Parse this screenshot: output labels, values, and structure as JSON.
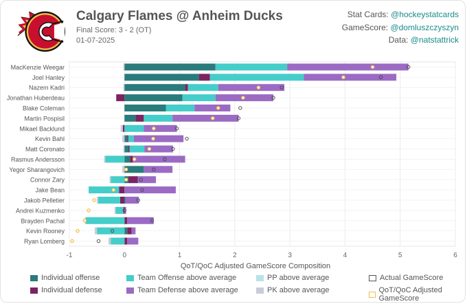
{
  "header": {
    "title": "Calgary Flames @ Anheim Ducks",
    "final_score": "Final Score: 3 - 2 (OT)",
    "date": "01-07-2025",
    "credits": [
      {
        "label": "Stat Cards:",
        "handle": "@hockeystatcards"
      },
      {
        "label": "GameScore:",
        "handle": "@domluszczyszyn"
      },
      {
        "label": "Data:",
        "handle": "@natstattrick"
      }
    ]
  },
  "logo": {
    "name": "Calgary Flames",
    "colors": {
      "red": "#c8102e",
      "gold": "#f1be48",
      "black": "#111111"
    }
  },
  "chart_data": {
    "type": "bar",
    "orientation": "horizontal",
    "stacked": true,
    "xlabel": "QoT/QoC Adjusted GameScore Composition",
    "xlim": [
      -1,
      6
    ],
    "xticks": [
      -1,
      0,
      1,
      2,
      3,
      4,
      5,
      6
    ],
    "grid": true,
    "categories": [
      "MacKenzie Weegar",
      "Joel Hanley",
      "Nazem Kadri",
      "Jonathan Huberdeau",
      "Blake Coleman",
      "Martin Pospisil",
      "Mikael Backlund",
      "Kevin Bahl",
      "Matt Coronato",
      "Rasmus Andersson",
      "Yegor Sharangovich",
      "Connor Zary",
      "Jake Bean",
      "Jakob Pelletier",
      "Andrei Kuzmenko",
      "Brayden Pachal",
      "Kevin Rooney",
      "Ryan Lomberg"
    ],
    "series": [
      {
        "name": "Individual offense",
        "color": "#2a7b7b",
        "values": [
          1.65,
          1.35,
          1.1,
          1.05,
          0.75,
          0.2,
          0.0,
          0.05,
          0.07,
          0.1,
          0.35,
          0.07,
          0.0,
          0.02,
          0.0,
          0.0,
          0.05,
          0.0
        ]
      },
      {
        "name": "Individual defense",
        "color": "#7b2460",
        "values": [
          0.0,
          0.2,
          0.05,
          -0.15,
          0.0,
          0.15,
          -0.03,
          0.02,
          0.02,
          0.05,
          0.0,
          0.17,
          -0.1,
          -0.08,
          -0.02,
          0.05,
          0.08,
          0.05
        ]
      },
      {
        "name": "Team Offense above average",
        "color": "#45cdc9",
        "values": [
          1.3,
          1.7,
          0.55,
          0.6,
          0.52,
          0.52,
          0.35,
          0.1,
          0.27,
          -0.35,
          0.0,
          -0.25,
          -0.55,
          -0.4,
          -0.14,
          -0.7,
          -0.5,
          -0.25
        ]
      },
      {
        "name": "Team Defense above average",
        "color": "#9b6bc4",
        "values": [
          2.2,
          1.68,
          1.2,
          1.05,
          0.65,
          1.2,
          0.6,
          0.9,
          0.52,
          0.95,
          0.52,
          0.33,
          0.93,
          0.24,
          0.03,
          0.48,
          0.07,
          0.2
        ]
      },
      {
        "name": "PP above average",
        "color": "#b9e2e8",
        "values": [
          0.0,
          0.0,
          0.0,
          0.0,
          0.0,
          0.0,
          0.0,
          0.0,
          0.0,
          0.0,
          0.0,
          0.0,
          0.0,
          0.0,
          0.0,
          0.0,
          0.0,
          0.0
        ]
      },
      {
        "name": "PK above average",
        "color": "#c9ccd8",
        "values": [
          -0.02,
          0.0,
          -0.02,
          0.0,
          0.0,
          0.0,
          -0.04,
          -0.04,
          -0.02,
          -0.02,
          -0.04,
          -0.02,
          0.0,
          -0.02,
          -0.02,
          -0.02,
          -0.04,
          -0.04
        ]
      }
    ],
    "actual_gamescore": [
      5.15,
      4.65,
      2.85,
      2.7,
      2.1,
      2.07,
      0.95,
      1.13,
      0.88,
      0.73,
      0.53,
      0.3,
      0.32,
      0.25,
      0.0,
      0.5,
      -0.22,
      -0.47
    ],
    "qot_qoc_adjusted_gamescore": [
      4.5,
      3.97,
      2.43,
      2.15,
      1.7,
      1.6,
      0.53,
      0.52,
      0.45,
      0.18,
      0.03,
      0.03,
      -0.2,
      -0.55,
      -0.65,
      -0.72,
      -0.85,
      -0.95
    ],
    "legend": [
      {
        "label": "Individual offense",
        "color": "#2a7b7b",
        "kind": "fill"
      },
      {
        "label": "Team Offense above average",
        "color": "#45cdc9",
        "kind": "fill"
      },
      {
        "label": "PP above average",
        "color": "#b9e2e8",
        "kind": "fill"
      },
      {
        "label": "Actual GameScore",
        "color": "#555555",
        "kind": "outline"
      },
      {
        "label": "Individual defense",
        "color": "#7b2460",
        "kind": "fill"
      },
      {
        "label": "Team Defense above average",
        "color": "#9b6bc4",
        "kind": "fill"
      },
      {
        "label": "PK above average",
        "color": "#c9ccd8",
        "kind": "fill"
      },
      {
        "label": "QoT/QoC Adjusted GameScore",
        "color": "#f1be48",
        "kind": "outline"
      }
    ],
    "legend_position": "bottom"
  }
}
